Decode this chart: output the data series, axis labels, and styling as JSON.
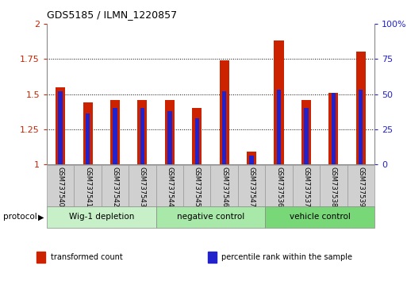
{
  "title": "GDS5185 / ILMN_1220857",
  "samples": [
    "GSM737540",
    "GSM737541",
    "GSM737542",
    "GSM737543",
    "GSM737544",
    "GSM737545",
    "GSM737546",
    "GSM737547",
    "GSM737536",
    "GSM737537",
    "GSM737538",
    "GSM737539"
  ],
  "transformed_count": [
    1.55,
    1.44,
    1.46,
    1.46,
    1.46,
    1.4,
    1.74,
    1.09,
    1.88,
    1.46,
    1.51,
    1.8
  ],
  "percentile_rank_pct": [
    52,
    36,
    40,
    40,
    38,
    33,
    52,
    6,
    53,
    40,
    51,
    53
  ],
  "bar_width": 0.35,
  "blue_bar_width": 0.35,
  "red_color": "#cc2200",
  "blue_color": "#2222cc",
  "ylim_left": [
    1.0,
    2.0
  ],
  "ylim_right": [
    0,
    100
  ],
  "yticks_left": [
    1.0,
    1.25,
    1.5,
    1.75,
    2.0
  ],
  "yticks_left_labels": [
    "1",
    "1.25",
    "1.5",
    "1.75",
    "2"
  ],
  "yticks_right": [
    0,
    25,
    50,
    75,
    100
  ],
  "yticks_right_labels": [
    "0",
    "25",
    "50",
    "75",
    "100%"
  ],
  "groups": [
    {
      "label": "Wig-1 depletion",
      "start": 0,
      "end": 3,
      "color": "#c8f0c8"
    },
    {
      "label": "negative control",
      "start": 4,
      "end": 7,
      "color": "#a8e8a8"
    },
    {
      "label": "vehicle control",
      "start": 8,
      "end": 11,
      "color": "#78d878"
    }
  ],
  "legend_entries": [
    {
      "label": "transformed count",
      "color": "#cc2200"
    },
    {
      "label": "percentile rank within the sample",
      "color": "#2222cc"
    }
  ],
  "protocol_label": "protocol",
  "tick_label_color_left": "#cc2200",
  "tick_label_color_right": "#2222cc",
  "sample_cell_color": "#d0d0d0",
  "sample_cell_edge": "#999999"
}
